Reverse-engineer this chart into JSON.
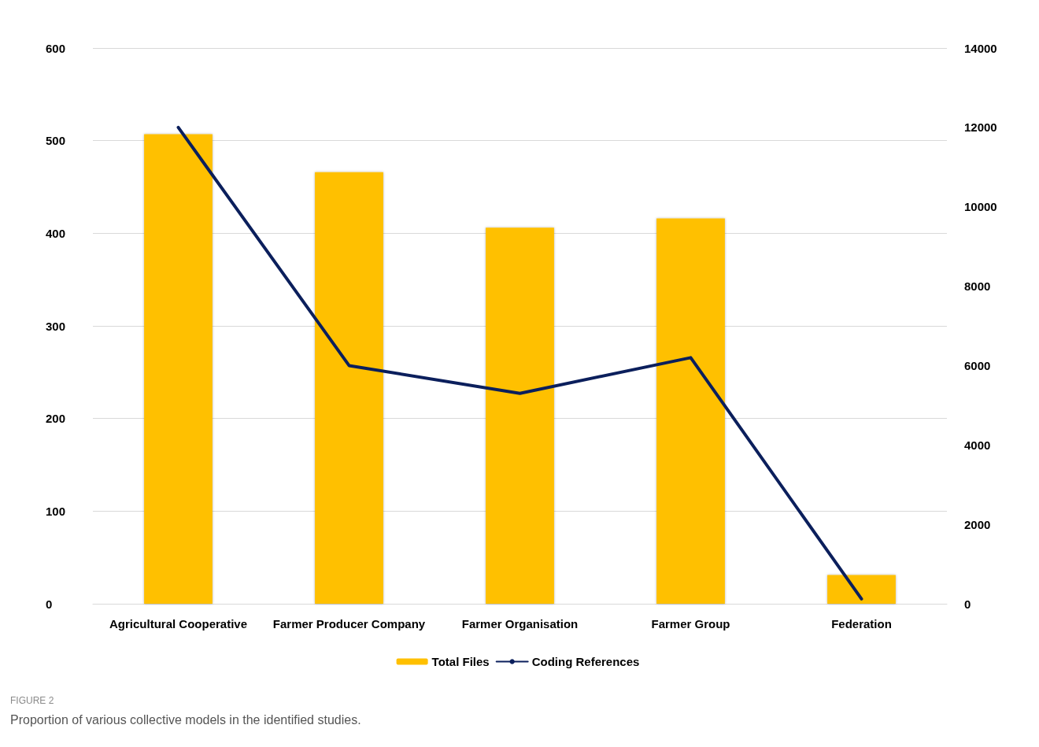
{
  "chart_data": {
    "type": "bar",
    "categories": [
      "Agricultural Cooperative",
      "Farmer Producer Company",
      "Farmer Organisation",
      "Farmer Group",
      "Federation"
    ],
    "series": [
      {
        "name": "Total Files",
        "color": "#ffc000",
        "values": [
          507,
          466,
          406,
          416,
          31
        ]
      },
      {
        "name": "Coding References",
        "type": "line",
        "axis": "y2",
        "color": "#0b1f5c",
        "values": [
          12000,
          6000,
          5300,
          6200,
          120
        ]
      }
    ],
    "ylim": [
      0,
      600
    ],
    "yticks": [
      0,
      100,
      200,
      300,
      400,
      500,
      600
    ],
    "y2lim": [
      0,
      14000
    ],
    "y2ticks": [
      0,
      2000,
      4000,
      6000,
      8000,
      10000,
      12000,
      14000
    ],
    "grid": "y",
    "legend": "bottom",
    "marker": "none",
    "line_style": "solid",
    "annotations": [
      "FIGURE 2",
      "Proportion of various collective models in the identified studies."
    ]
  }
}
